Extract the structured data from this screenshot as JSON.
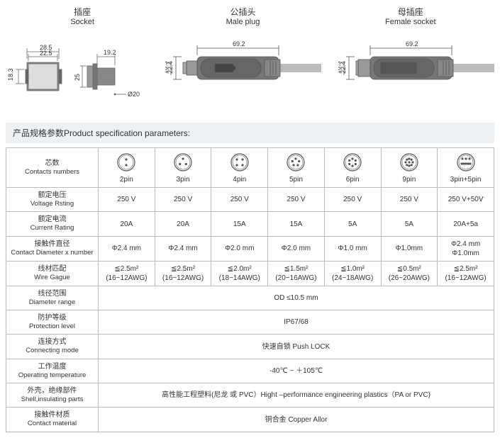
{
  "headers": {
    "socket": {
      "cn": "插座",
      "en": "Socket"
    },
    "male": {
      "cn": "公插头",
      "en": "Male plug"
    },
    "female": {
      "cn": "母插座",
      "en": "Female socket"
    }
  },
  "dimensions": {
    "socket": {
      "d1": "28.5",
      "d2": "22.5",
      "d3": "19.2",
      "h": "18.3",
      "h2": "25",
      "dia": "Ø20"
    },
    "male": {
      "len": "69.2",
      "h": "22.4",
      "h2": "18.3"
    },
    "female": {
      "len": "69.2",
      "h": "22.4",
      "h2": "18.3"
    }
  },
  "section_title": "产品规格参数Product specification parameters:",
  "rows": {
    "contacts": {
      "cn": "芯数",
      "en": "Contacts numbers"
    },
    "voltage": {
      "cn": "额定电压",
      "en": "Voltage Rsting"
    },
    "current": {
      "cn": "额定电流",
      "en": "Current Rating"
    },
    "diameter": {
      "cn": "接触件直径",
      "en": "Contact Diameter x number"
    },
    "wire": {
      "cn": "线材匹配",
      "en": "Wire Gague"
    },
    "range": {
      "cn": "线径范围",
      "en": "Diameter range"
    },
    "protection": {
      "cn": "防护等级",
      "en": "Protection level"
    },
    "connecting": {
      "cn": "连接方式",
      "en": "Connecting mode"
    },
    "temp": {
      "cn": "工作温度",
      "en": "Operating temperature"
    },
    "shell": {
      "cn": "外壳，绝缘部件",
      "en": "Shell,insulating parts"
    },
    "material": {
      "cn": "接触件材质",
      "en": "Contact material"
    }
  },
  "columns": [
    "2pin",
    "3pin",
    "4pin",
    "5pin",
    "6pin",
    "9pin",
    "3pin+5pin"
  ],
  "pin_layouts": [
    [
      [
        0,
        -4
      ],
      [
        0,
        4
      ]
    ],
    [
      [
        0,
        -5
      ],
      [
        -4.3,
        2.5
      ],
      [
        4.3,
        2.5
      ]
    ],
    [
      [
        -4,
        -4
      ],
      [
        4,
        -4
      ],
      [
        -4,
        4
      ],
      [
        4,
        4
      ]
    ],
    [
      [
        0,
        -5
      ],
      [
        -4.7,
        -1.5
      ],
      [
        4.7,
        -1.5
      ],
      [
        -2.9,
        4
      ],
      [
        2.9,
        4
      ]
    ],
    [
      [
        0,
        -5
      ],
      [
        -4.3,
        -2.5
      ],
      [
        4.3,
        -2.5
      ],
      [
        -4.3,
        2.5
      ],
      [
        4.3,
        2.5
      ],
      [
        0,
        5
      ]
    ],
    [
      [
        0,
        -5
      ],
      [
        -3.2,
        -3.8
      ],
      [
        3.2,
        -3.8
      ],
      [
        -5,
        0
      ],
      [
        5,
        0
      ],
      [
        -3.2,
        3.8
      ],
      [
        3.2,
        3.8
      ],
      [
        0,
        5
      ],
      [
        0,
        0
      ]
    ],
    [
      [
        -5,
        -5
      ],
      [
        0,
        -5
      ],
      [
        5,
        -5
      ],
      [
        -6,
        2
      ],
      [
        -3,
        2
      ],
      [
        0,
        2
      ],
      [
        3,
        2
      ],
      [
        6,
        2
      ]
    ]
  ],
  "pin_style": {
    "outer_r": 12,
    "dot_r": 1.6,
    "stroke": "#555",
    "fill": "#555",
    "bg": "#fff"
  },
  "data": {
    "voltage": [
      "250 V",
      "250 V",
      "250 V",
      "250 V",
      "250 V",
      "250 V",
      "250 V+50V"
    ],
    "current": [
      "20A",
      "20A",
      "15A",
      "15A",
      "5A",
      "5A",
      "20A+5a"
    ],
    "diameter": [
      "Φ2.4 mm",
      "Φ2.4 mm",
      "Φ2.0 mm",
      "Φ2.0 mm",
      "Φ1.0 mm",
      "Φ1.0mm",
      "Φ2.4 mm\nΦ1.0mm"
    ],
    "wire": [
      "≦2.5m²\n(16~12AWG)",
      "≦2.5m²\n(16~12AWG)",
      "≦2.0m²\n(18~14AWG)",
      "≦1.5m²\n(20~16AWG)",
      "≦1.0m²\n(24~18AWG)",
      "≦0.5m²\n(26~20AWG)",
      "≦2.5m²\n(16~12AWG)"
    ]
  },
  "spans": {
    "range": "OD ≤10.5 mm",
    "protection": "IP67/68",
    "connecting": "快速自锁 Push LOCK",
    "temp": "-40℃ ~ ＋105℃",
    "shell": "高性能工程塑料(尼龙 或 PVC）Hight –performance engineering plastics（PA or PVC)",
    "material": "铜合金 Copper Allor"
  },
  "colors": {
    "border": "#bbb",
    "header_bg": "#eef1f4",
    "text": "#333",
    "draw_stroke": "#666",
    "draw_fill": "#777",
    "cable": "#aaa"
  }
}
